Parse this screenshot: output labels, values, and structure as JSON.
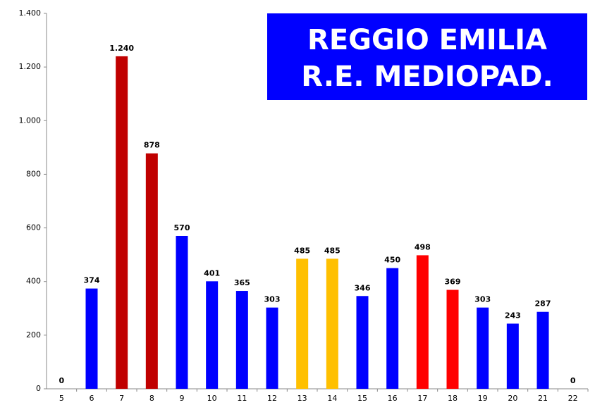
{
  "chart_data": {
    "type": "bar",
    "title": [
      "REGGIO EMILIA",
      "R.E.  MEDIOPAD."
    ],
    "categories": [
      "5",
      "6",
      "7",
      "8",
      "9",
      "10",
      "11",
      "12",
      "13",
      "14",
      "15",
      "16",
      "17",
      "18",
      "19",
      "20",
      "21",
      "22"
    ],
    "values": [
      0,
      374,
      1240,
      878,
      570,
      401,
      365,
      303,
      485,
      485,
      346,
      450,
      498,
      369,
      303,
      243,
      287,
      0
    ],
    "value_labels": [
      "0",
      "374",
      "1.240",
      "878",
      "570",
      "401",
      "365",
      "303",
      "485",
      "485",
      "346",
      "450",
      "498",
      "369",
      "303",
      "243",
      "287",
      "0"
    ],
    "colors": [
      "#0000ff",
      "#0000ff",
      "#c00000",
      "#c00000",
      "#0000ff",
      "#0000ff",
      "#0000ff",
      "#0000ff",
      "#ffc000",
      "#ffc000",
      "#0000ff",
      "#0000ff",
      "#ff0000",
      "#ff0000",
      "#0000ff",
      "#0000ff",
      "#0000ff",
      "#0000ff"
    ],
    "ylim": [
      0,
      1400
    ],
    "yticks": [
      0,
      200,
      400,
      600,
      800,
      {
        "value": 1000,
        "label": "1.000"
      },
      {
        "value": 1200,
        "label": "1.200"
      },
      {
        "value": 1400,
        "label": "1.400"
      }
    ]
  }
}
